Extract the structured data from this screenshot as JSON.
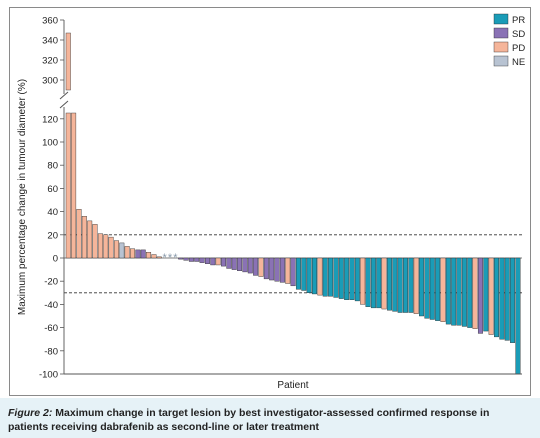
{
  "caption": {
    "label": "Figure 2:",
    "text": "Maximum change in target lesion by best investigator-assessed confirmed response in patients receiving dabrafenib as second-line or later treatment"
  },
  "colors": {
    "PR": "#1a9cb7",
    "SD": "#8a72b5",
    "PD": "#f5b59a",
    "NE": "#b8c3d2",
    "reference_line": "#333333",
    "axis": "#555555"
  },
  "chart_data": {
    "type": "bar",
    "title": "",
    "xlabel": "Patient",
    "ylabel": "Maximum percentage change in tumour diameter (%)",
    "ylim": [
      -100,
      360
    ],
    "axis_break": {
      "lower_top": 125,
      "upper_bottom": 290
    },
    "yticks_lower": [
      "120",
      "100",
      "80",
      "60",
      "40",
      "20",
      "0",
      "-20",
      "-40",
      "-60",
      "-80",
      "-100"
    ],
    "yticks_upper": [
      "360",
      "340",
      "320",
      "300"
    ],
    "reference_lines": [
      20,
      -30
    ],
    "legend": {
      "position": "top-right",
      "entries": [
        "PR",
        "SD",
        "PD",
        "NE"
      ]
    },
    "not_evaluable_marker": "*",
    "bars": [
      {
        "response": "PD",
        "value": 347
      },
      {
        "response": "PD",
        "value": 125
      },
      {
        "response": "PD",
        "value": 42
      },
      {
        "response": "PD",
        "value": 36
      },
      {
        "response": "PD",
        "value": 32
      },
      {
        "response": "PD",
        "value": 29
      },
      {
        "response": "PD",
        "value": 21
      },
      {
        "response": "PD",
        "value": 20
      },
      {
        "response": "PD",
        "value": 18
      },
      {
        "response": "PD",
        "value": 15
      },
      {
        "response": "NE",
        "value": 13
      },
      {
        "response": "PD",
        "value": 10
      },
      {
        "response": "PD",
        "value": 8
      },
      {
        "response": "SD",
        "value": 7
      },
      {
        "response": "SD",
        "value": 7
      },
      {
        "response": "PD",
        "value": 5
      },
      {
        "response": "PD",
        "value": 3
      },
      {
        "response": "PD",
        "value": 1
      },
      {
        "response": "NE",
        "value": 0,
        "marker": "*"
      },
      {
        "response": "NE",
        "value": 0,
        "marker": "*"
      },
      {
        "response": "NE",
        "value": 0,
        "marker": "*"
      },
      {
        "response": "SD",
        "value": -1
      },
      {
        "response": "SD",
        "value": -2
      },
      {
        "response": "SD",
        "value": -3
      },
      {
        "response": "SD",
        "value": -3
      },
      {
        "response": "SD",
        "value": -4
      },
      {
        "response": "SD",
        "value": -5
      },
      {
        "response": "SD",
        "value": -6
      },
      {
        "response": "PD",
        "value": -6
      },
      {
        "response": "SD",
        "value": -7
      },
      {
        "response": "SD",
        "value": -9
      },
      {
        "response": "SD",
        "value": -10
      },
      {
        "response": "SD",
        "value": -11
      },
      {
        "response": "SD",
        "value": -12
      },
      {
        "response": "SD",
        "value": -13
      },
      {
        "response": "SD",
        "value": -15
      },
      {
        "response": "PD",
        "value": -16
      },
      {
        "response": "SD",
        "value": -18
      },
      {
        "response": "SD",
        "value": -19
      },
      {
        "response": "SD",
        "value": -20
      },
      {
        "response": "SD",
        "value": -21
      },
      {
        "response": "PD",
        "value": -22
      },
      {
        "response": "SD",
        "value": -24
      },
      {
        "response": "PR",
        "value": -27
      },
      {
        "response": "PR",
        "value": -28
      },
      {
        "response": "PR",
        "value": -30
      },
      {
        "response": "PR",
        "value": -31
      },
      {
        "response": "PD",
        "value": -32
      },
      {
        "response": "PR",
        "value": -33
      },
      {
        "response": "PR",
        "value": -33
      },
      {
        "response": "PR",
        "value": -34
      },
      {
        "response": "PR",
        "value": -35
      },
      {
        "response": "PR",
        "value": -36
      },
      {
        "response": "PR",
        "value": -36
      },
      {
        "response": "PR",
        "value": -37
      },
      {
        "response": "PD",
        "value": -40
      },
      {
        "response": "PR",
        "value": -42
      },
      {
        "response": "PR",
        "value": -43
      },
      {
        "response": "PR",
        "value": -43
      },
      {
        "response": "PD",
        "value": -44
      },
      {
        "response": "PR",
        "value": -45
      },
      {
        "response": "PR",
        "value": -46
      },
      {
        "response": "PR",
        "value": -47
      },
      {
        "response": "PR",
        "value": -47
      },
      {
        "response": "PR",
        "value": -47
      },
      {
        "response": "PD",
        "value": -48
      },
      {
        "response": "PR",
        "value": -50
      },
      {
        "response": "PR",
        "value": -52
      },
      {
        "response": "PR",
        "value": -53
      },
      {
        "response": "PR",
        "value": -54
      },
      {
        "response": "PD",
        "value": -55
      },
      {
        "response": "PR",
        "value": -57
      },
      {
        "response": "PR",
        "value": -58
      },
      {
        "response": "PR",
        "value": -58
      },
      {
        "response": "PR",
        "value": -59
      },
      {
        "response": "PR",
        "value": -60
      },
      {
        "response": "PD",
        "value": -61
      },
      {
        "response": "SD",
        "value": -65
      },
      {
        "response": "PR",
        "value": -63
      },
      {
        "response": "PD",
        "value": -66
      },
      {
        "response": "PR",
        "value": -68
      },
      {
        "response": "PR",
        "value": -70
      },
      {
        "response": "PR",
        "value": -71
      },
      {
        "response": "PR",
        "value": -73
      },
      {
        "response": "PR",
        "value": -100
      }
    ]
  }
}
